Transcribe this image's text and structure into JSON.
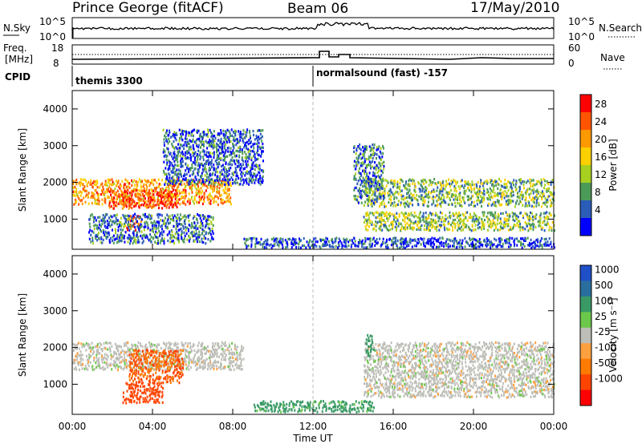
{
  "header": {
    "station": "Prince George (fitACF)",
    "beam": "Beam 06",
    "date": "17/May/2010"
  },
  "top_panels": {
    "nsky_label": "N.Sky",
    "nsky_ticks": [
      "10^5",
      "10^0"
    ],
    "nsearch_label": "N.Search",
    "nsearch_ticks": [
      "10^5",
      "10^0"
    ],
    "freq_label_1": "Freq.",
    "freq_label_2": "[MHz]",
    "freq_ticks": [
      "18",
      "8"
    ],
    "nave_label": "Nave",
    "nave_ticks": [
      "60",
      "0"
    ],
    "cpid_label": "CPID",
    "cpid_segments": [
      {
        "name": "themis 3300",
        "start_hour": 0
      },
      {
        "name": "normalsound (fast) -157",
        "start_hour": 12
      }
    ]
  },
  "power_colorbar": {
    "title": "Power [dB]",
    "ticks": [
      "28",
      "24",
      "20",
      "16",
      "12",
      "8",
      "4"
    ],
    "colors": [
      "#ff0000",
      "#ff5500",
      "#ff9900",
      "#ffd000",
      "#a8d020",
      "#4c9a58",
      "#2a5cb8",
      "#0000ff"
    ]
  },
  "velocity_colorbar": {
    "title": "Velocity [m s⁻¹]",
    "ticks": [
      "1000",
      "500",
      "100",
      "25",
      "-25",
      "-100",
      "-500",
      "-1000"
    ],
    "colors": [
      "#2050c8",
      "#2a6e9e",
      "#3a9a66",
      "#6cc84a",
      "#bebeb8",
      "#ffa040",
      "#ff7a00",
      "#ff4400",
      "#ff0000"
    ]
  },
  "chart_data": [
    {
      "type": "heatmap",
      "title": "Power",
      "ylabel": "Slant Range [km]",
      "xlabel": "Time UT",
      "x_ticks": [
        "00:00",
        "04:00",
        "08:00",
        "12:00",
        "16:00",
        "20:00",
        "00:00"
      ],
      "y_ticks": [
        "4000",
        "3000",
        "2000",
        "1000"
      ],
      "xlim_hours": [
        0,
        24
      ],
      "ylim_km": [
        180,
        4500
      ],
      "echo_regions": [
        {
          "t0": 0.0,
          "t1": 7.9,
          "r0": 1350,
          "r1": 2050,
          "power_db": 22
        },
        {
          "t0": 1.8,
          "t1": 5.2,
          "r0": 1250,
          "r1": 1750,
          "power_db": 27
        },
        {
          "t0": 2.6,
          "t1": 3.4,
          "r0": 650,
          "r1": 1050,
          "power_db": 26
        },
        {
          "t0": 4.5,
          "t1": 9.5,
          "r0": 1900,
          "r1": 3400,
          "power_db": 6
        },
        {
          "t0": 0.8,
          "t1": 7.0,
          "r0": 300,
          "r1": 1100,
          "power_db": 7
        },
        {
          "t0": 8.5,
          "t1": 24.0,
          "r0": 180,
          "r1": 450,
          "power_db": 5
        },
        {
          "t0": 14.5,
          "t1": 24.0,
          "r0": 1300,
          "r1": 2050,
          "power_db": 12
        },
        {
          "t0": 14.5,
          "t1": 24.0,
          "r0": 650,
          "r1": 1150,
          "power_db": 13
        },
        {
          "t0": 14.0,
          "t1": 15.5,
          "r0": 1400,
          "r1": 3000,
          "power_db": 8
        }
      ]
    },
    {
      "type": "heatmap",
      "title": "Velocity",
      "ylabel": "Slant Range [km]",
      "xlabel": "Time UT",
      "x_ticks": [
        "00:00",
        "04:00",
        "08:00",
        "12:00",
        "16:00",
        "20:00",
        "00:00"
      ],
      "y_ticks": [
        "4000",
        "3000",
        "2000",
        "1000"
      ],
      "xlim_hours": [
        0,
        24
      ],
      "ylim_km": [
        180,
        4500
      ],
      "echo_regions": [
        {
          "t0": 0.0,
          "t1": 8.5,
          "r0": 1350,
          "r1": 2100,
          "velocity": 0
        },
        {
          "t0": 2.8,
          "t1": 5.5,
          "r0": 1000,
          "r1": 1900,
          "velocity": -300
        },
        {
          "t0": 2.5,
          "t1": 4.5,
          "r0": 450,
          "r1": 1000,
          "velocity": -400
        },
        {
          "t0": 14.5,
          "t1": 24.0,
          "r0": 600,
          "r1": 2100,
          "velocity": 0
        },
        {
          "t0": 9.0,
          "t1": 15.0,
          "r0": 200,
          "r1": 500,
          "velocity": 80
        },
        {
          "t0": 14.6,
          "t1": 15.0,
          "r0": 1700,
          "r1": 2300,
          "velocity": 200
        }
      ]
    }
  ]
}
